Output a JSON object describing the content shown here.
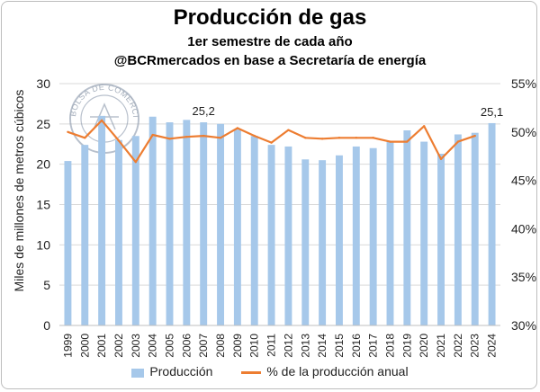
{
  "title": "Producción de gas",
  "subtitle_1": "1er semestre de cada año",
  "subtitle_2": "@BCRmercados en base a Secretaría de energía",
  "colors": {
    "bars": "#a6c8ea",
    "line": "#ed7d31",
    "grid": "#d9d9d9"
  },
  "legend": {
    "position": "bottom",
    "items": [
      "Producción",
      "% de la producción anual"
    ]
  },
  "watermark": {
    "text": "BOLSA DE COMERCIO DE ROSARIO"
  },
  "chart_data": {
    "type": "bar+line",
    "categories": [
      "1999",
      "2000",
      "2001",
      "2002",
      "2003",
      "2004",
      "2005",
      "2006",
      "2007",
      "2008",
      "2009",
      "2010",
      "2011",
      "2012",
      "2013",
      "2014",
      "2015",
      "2016",
      "2017",
      "2018",
      "2019",
      "2020",
      "2021",
      "2022",
      "2023",
      "2024"
    ],
    "series": [
      {
        "name": "Producción",
        "type": "bar",
        "axis": "left",
        "values": [
          20.4,
          22.4,
          26.0,
          23.0,
          23.5,
          25.9,
          25.2,
          25.5,
          25.2,
          25.0,
          24.3,
          23.5,
          22.4,
          22.2,
          20.6,
          20.5,
          21.1,
          22.2,
          22.0,
          22.8,
          24.2,
          22.8,
          21.3,
          23.7,
          23.9,
          25.1
        ]
      },
      {
        "name": "% de la producción anual",
        "type": "line",
        "axis": "right",
        "values": [
          50.0,
          49.4,
          51.2,
          49.1,
          46.9,
          49.7,
          49.3,
          49.5,
          49.6,
          49.4,
          50.4,
          49.6,
          48.9,
          50.2,
          49.4,
          49.3,
          49.4,
          49.4,
          49.4,
          49.0,
          49.0,
          50.6,
          47.2,
          49.0,
          49.6,
          null
        ]
      }
    ],
    "data_labels": [
      {
        "category": "2007",
        "text": "25,2"
      },
      {
        "category": "2024",
        "text": "25,1"
      }
    ],
    "ylabel_left": "Miles de millones de metros cúbicos",
    "y_left": {
      "min": 0,
      "max": 30,
      "ticks": [
        "0",
        "5",
        "10",
        "15",
        "20",
        "25",
        "30"
      ]
    },
    "y_right": {
      "min": 30,
      "max": 55,
      "ticks": [
        "30%",
        "35%",
        "40%",
        "45%",
        "50%",
        "55%"
      ]
    },
    "grid": "horizontal"
  }
}
